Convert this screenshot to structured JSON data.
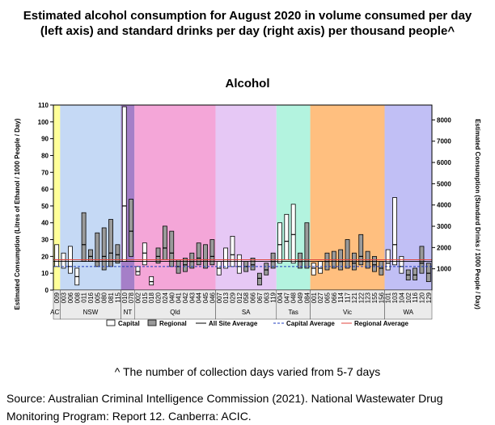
{
  "title": "Estimated alcohol consumption for August 2020 in volume consumed per day (left axis) and standard drinks per day (right axis) per thousand people^",
  "footnote": "^ The number of collection days varied from 5-7 days",
  "source": "Source: Australian Criminal Intelligence Commission (2021). National Wastewater Drug Monitoring Program: Report 12. Canberra: ACIC.",
  "chart_data": {
    "type": "bar",
    "subtitle": "Alcohol",
    "ylabel": "Estimated Consumption (Litres of Ethanol / 1000 People / Day)",
    "y2label": "Estimated Consumption (Standard Drinks / 1000 People / Day)",
    "ylim": [
      0,
      110
    ],
    "y2lim": [
      0,
      8700
    ],
    "yticks": [
      0,
      10,
      20,
      30,
      40,
      50,
      60,
      70,
      80,
      90,
      100,
      110
    ],
    "y2ticks": [
      1000,
      2000,
      3000,
      4000,
      5000,
      6000,
      7000,
      8000
    ],
    "grid": false,
    "legend_position": "bottom",
    "series_types": [
      "Capital",
      "Regional"
    ],
    "legend": [
      {
        "label": "Capital",
        "kind": "box-white"
      },
      {
        "label": "Regional",
        "kind": "box-grey"
      },
      {
        "label": "All Site Average",
        "kind": "line-black"
      },
      {
        "label": "Capital Average",
        "kind": "line-blue-dash"
      },
      {
        "label": "Regional Average",
        "kind": "line-red"
      }
    ],
    "averages": {
      "all_site": 17,
      "capital": 14,
      "regional": 18
    },
    "colors": {
      "capital_fill": "#ffffff",
      "regional_fill": "#9a9a9a",
      "all_site": "#000000",
      "capital_avg": "#1f3cbf",
      "regional_avg": "#e0443c",
      "ACT": "#ffff99",
      "NSW": "#c5d9f5",
      "NT": "#a57fc8",
      "Qld": "#f4a6d8",
      "SA": "#e6c8f5",
      "Tas": "#b3f3df",
      "Vic": "#ffbf7f",
      "WA": "#c1bff5"
    },
    "states": [
      {
        "name": "ACT",
        "sites": [
          {
            "id": "009",
            "type": "capital",
            "low": 14,
            "high": 27,
            "median": 18
          }
        ]
      },
      {
        "name": "NSW",
        "sites": [
          {
            "id": "003",
            "type": "capital",
            "low": 13,
            "high": 22,
            "median": 18
          },
          {
            "id": "006",
            "type": "capital",
            "low": 10,
            "high": 26,
            "median": 14
          },
          {
            "id": "008",
            "type": "capital",
            "low": 3,
            "high": 13,
            "median": 8
          },
          {
            "id": "011",
            "type": "regional",
            "low": 17,
            "high": 46,
            "median": 27
          },
          {
            "id": "016",
            "type": "regional",
            "low": 17,
            "high": 24,
            "median": 20
          },
          {
            "id": "005",
            "type": "regional",
            "low": 14,
            "high": 34,
            "median": 17
          },
          {
            "id": "080",
            "type": "regional",
            "low": 12,
            "high": 37,
            "median": 20
          },
          {
            "id": "081",
            "type": "regional",
            "low": 14,
            "high": 42,
            "median": 22
          },
          {
            "id": "115",
            "type": "regional",
            "low": 16,
            "high": 27,
            "median": 21
          }
        ]
      },
      {
        "name": "NT",
        "sites": [
          {
            "id": "010",
            "type": "capital",
            "low": 17,
            "high": 109,
            "median": 50
          },
          {
            "id": "078",
            "type": "regional",
            "low": 20,
            "high": 54,
            "median": 35
          }
        ]
      },
      {
        "name": "Qld",
        "sites": [
          {
            "id": "002",
            "type": "capital",
            "low": 9,
            "high": 14,
            "median": 11
          },
          {
            "id": "015",
            "type": "capital",
            "low": 15,
            "high": 28,
            "median": 22
          },
          {
            "id": "018",
            "type": "capital",
            "low": 3,
            "high": 8,
            "median": 5
          },
          {
            "id": "020",
            "type": "regional",
            "low": 16,
            "high": 25,
            "median": 20
          },
          {
            "id": "024",
            "type": "regional",
            "low": 18,
            "high": 38,
            "median": 25
          },
          {
            "id": "040",
            "type": "regional",
            "low": 14,
            "high": 35,
            "median": 22
          },
          {
            "id": "041",
            "type": "regional",
            "low": 10,
            "high": 18,
            "median": 14
          },
          {
            "id": "042",
            "type": "regional",
            "low": 11,
            "high": 19,
            "median": 15
          },
          {
            "id": "043",
            "type": "regional",
            "low": 13,
            "high": 22,
            "median": 17
          },
          {
            "id": "044",
            "type": "regional",
            "low": 15,
            "high": 28,
            "median": 19
          },
          {
            "id": "045",
            "type": "regional",
            "low": 13,
            "high": 27,
            "median": 18
          },
          {
            "id": "046",
            "type": "regional",
            "low": 15,
            "high": 30,
            "median": 20
          }
        ]
      },
      {
        "name": "SA",
        "sites": [
          {
            "id": "007",
            "type": "capital",
            "low": 9,
            "high": 17,
            "median": 13
          },
          {
            "id": "013",
            "type": "capital",
            "low": 13,
            "high": 25,
            "median": 18
          },
          {
            "id": "029",
            "type": "capital",
            "low": 14,
            "high": 32,
            "median": 21
          },
          {
            "id": "012",
            "type": "capital",
            "low": 10,
            "high": 21,
            "median": 14
          },
          {
            "id": "058",
            "type": "regional",
            "low": 11,
            "high": 17,
            "median": 14
          },
          {
            "id": "066",
            "type": "regional",
            "low": 12,
            "high": 19,
            "median": 15
          },
          {
            "id": "067",
            "type": "regional",
            "low": 3,
            "high": 10,
            "median": 7
          },
          {
            "id": "063",
            "type": "regional",
            "low": 9,
            "high": 16,
            "median": 12
          },
          {
            "id": "119",
            "type": "regional",
            "low": 13,
            "high": 22,
            "median": 17
          }
        ]
      },
      {
        "name": "Tas",
        "sites": [
          {
            "id": "004",
            "type": "capital",
            "low": 16,
            "high": 40,
            "median": 27
          },
          {
            "id": "047",
            "type": "capital",
            "low": 18,
            "high": 45,
            "median": 29
          },
          {
            "id": "048",
            "type": "capital",
            "low": 16,
            "high": 51,
            "median": 33
          },
          {
            "id": "049",
            "type": "regional",
            "low": 13,
            "high": 22,
            "median": 17
          },
          {
            "id": "084",
            "type": "regional",
            "low": 13,
            "high": 40,
            "median": 18
          }
        ]
      },
      {
        "name": "Vic",
        "sites": [
          {
            "id": "001",
            "type": "capital",
            "low": 9,
            "high": 16,
            "median": 13
          },
          {
            "id": "027",
            "type": "capital",
            "low": 10,
            "high": 17,
            "median": 13
          },
          {
            "id": "065",
            "type": "regional",
            "low": 12,
            "high": 22,
            "median": 17
          },
          {
            "id": "066",
            "type": "regional",
            "low": 13,
            "high": 23,
            "median": 18
          },
          {
            "id": "114",
            "type": "regional",
            "low": 12,
            "high": 24,
            "median": 17
          },
          {
            "id": "117",
            "type": "regional",
            "low": 13,
            "high": 30,
            "median": 18
          },
          {
            "id": "121",
            "type": "regional",
            "low": 12,
            "high": 22,
            "median": 16
          },
          {
            "id": "122",
            "type": "regional",
            "low": 15,
            "high": 33,
            "median": 20
          },
          {
            "id": "123",
            "type": "regional",
            "low": 13,
            "high": 23,
            "median": 17
          },
          {
            "id": "155",
            "type": "regional",
            "low": 11,
            "high": 20,
            "median": 15
          },
          {
            "id": "156",
            "type": "regional",
            "low": 9,
            "high": 17,
            "median": 13
          }
        ]
      },
      {
        "name": "WA",
        "sites": [
          {
            "id": "101",
            "type": "capital",
            "low": 12,
            "high": 24,
            "median": 16
          },
          {
            "id": "103",
            "type": "capital",
            "low": 15,
            "high": 55,
            "median": 27
          },
          {
            "id": "104",
            "type": "capital",
            "low": 10,
            "high": 20,
            "median": 14
          },
          {
            "id": "102",
            "type": "regional",
            "low": 6,
            "high": 12,
            "median": 9
          },
          {
            "id": "116",
            "type": "regional",
            "low": 6,
            "high": 13,
            "median": 9
          },
          {
            "id": "120",
            "type": "regional",
            "low": 10,
            "high": 26,
            "median": 16
          },
          {
            "id": "129",
            "type": "regional",
            "low": 5,
            "high": 16,
            "median": 10
          }
        ]
      }
    ]
  }
}
